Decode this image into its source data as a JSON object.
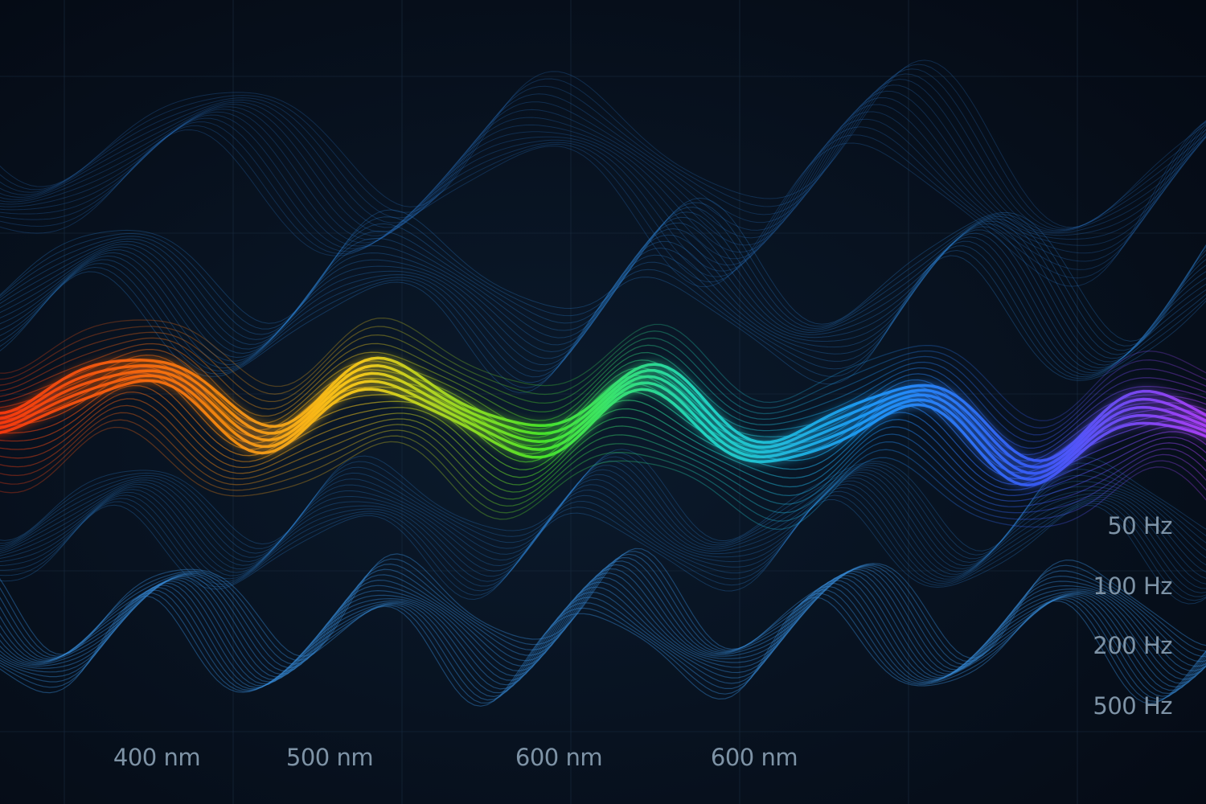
{
  "wavelength_labels": [
    "400 nm",
    "500 nm",
    "600 nm",
    "600 nm"
  ],
  "frequency_labels": [
    "50 Hz",
    "100 Hz",
    "200 Hz",
    "500 Hz"
  ]
}
